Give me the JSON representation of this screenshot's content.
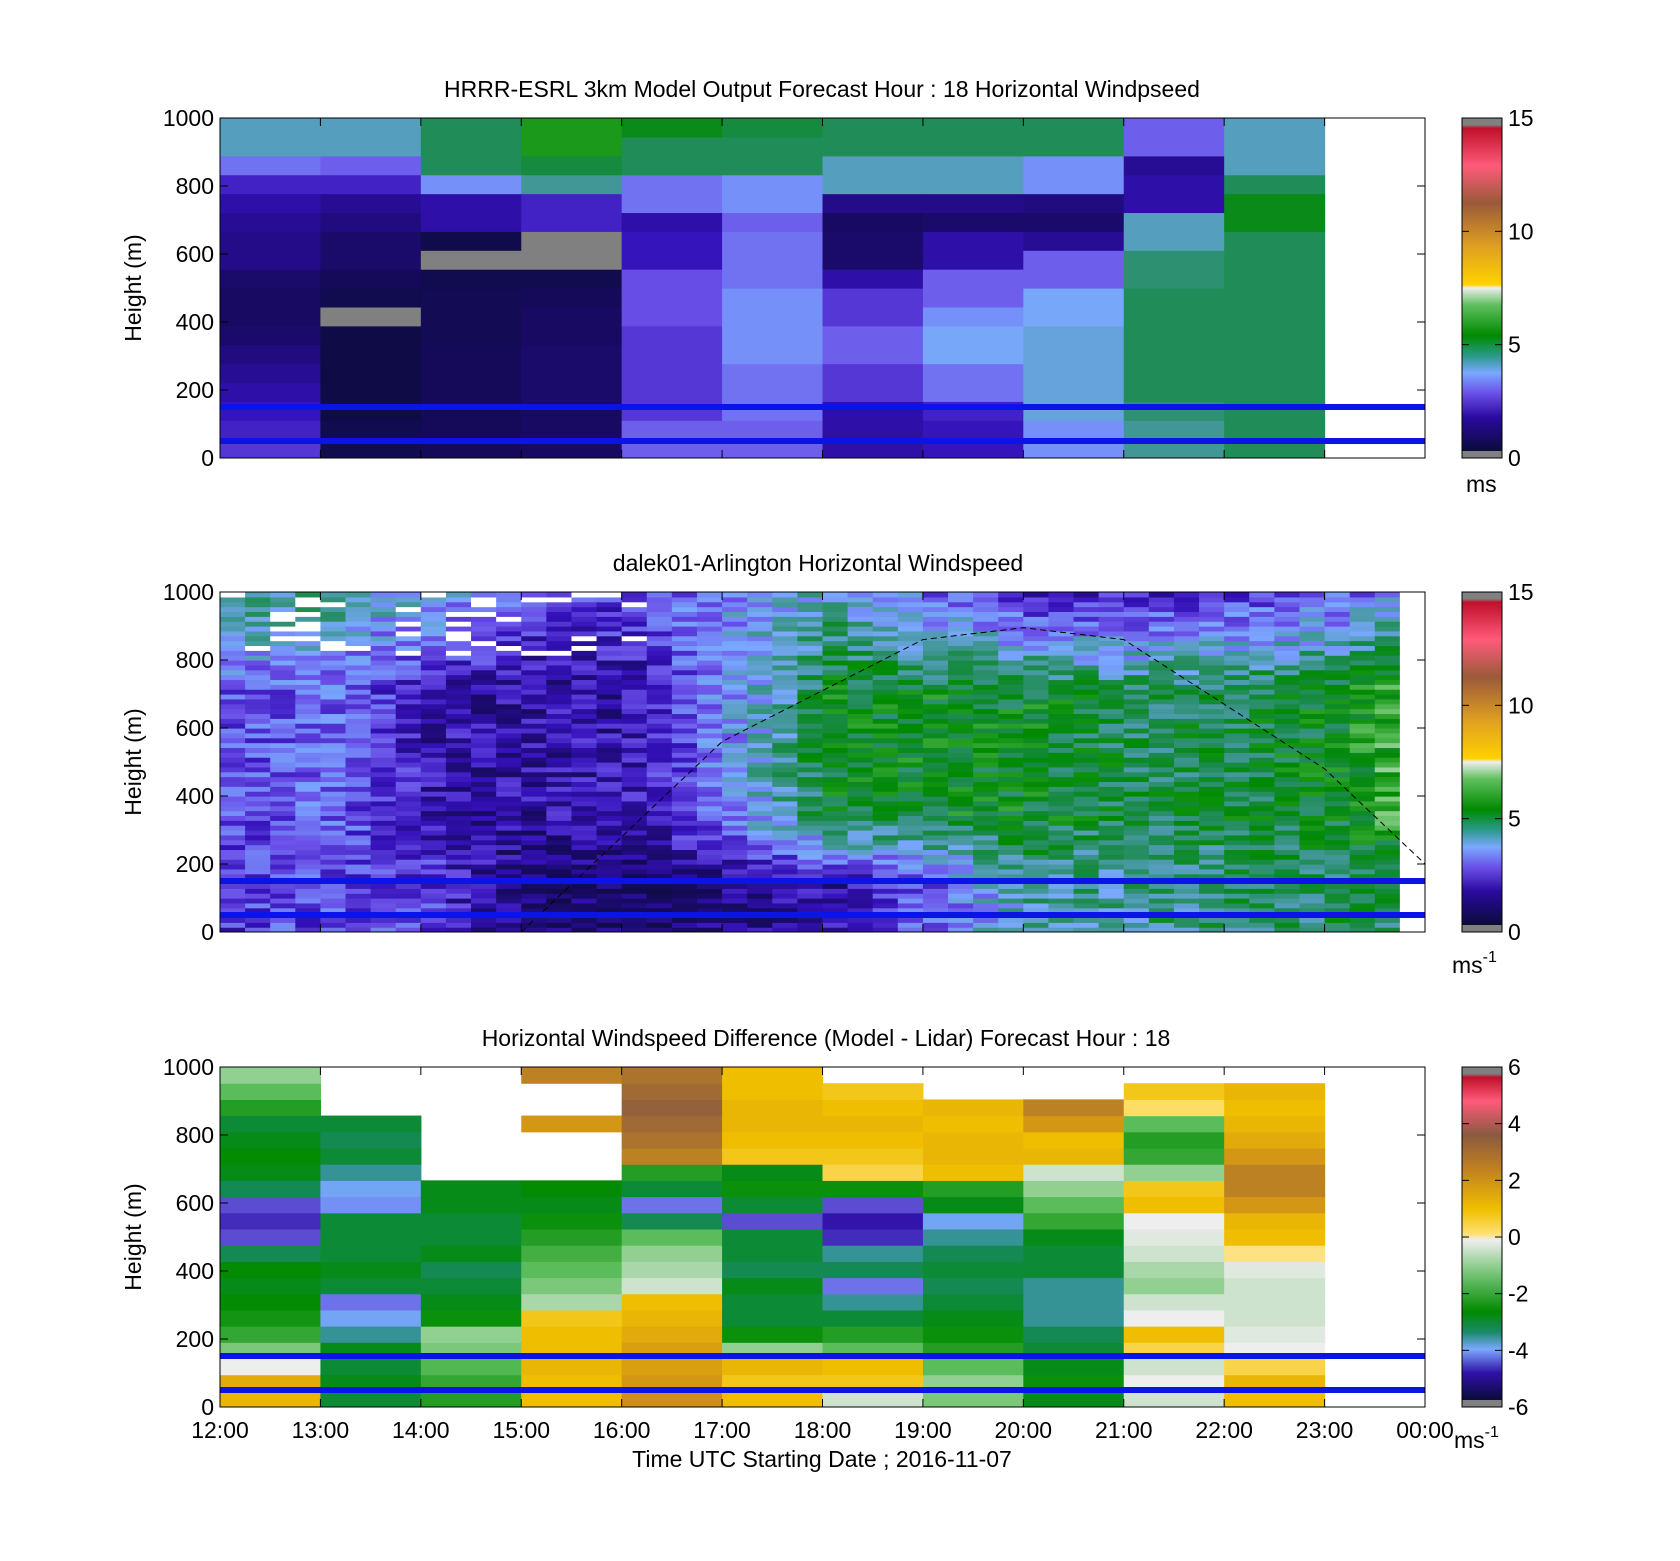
{
  "chart_data": [
    {
      "type": "heatmap",
      "title": "HRRR-ESRL 3km Model Output   Forecast Hour : 18 Horizontal Windpseed",
      "ylabel": "Height (m)",
      "xlabel": "",
      "ylim": [
        0,
        1000
      ],
      "yticks": [
        "0",
        "200",
        "400",
        "600",
        "800",
        "1000"
      ],
      "xlim": [
        12,
        24
      ],
      "colorbar": {
        "min": 0,
        "max": 15,
        "ticks": [
          "0",
          "5",
          "10",
          "15"
        ],
        "unit_label": "ms",
        "unit_sup": ""
      },
      "reference_lines_height_m": [
        50,
        150
      ],
      "columns": [
        {
          "hour": 12,
          "speeds": [
            2.5,
            2.2,
            2.0,
            1.8,
            1.6,
            1.4,
            1.2,
            1.0,
            1.0,
            1.2,
            1.5,
            1.5,
            1.6,
            1.8,
            2.2,
            3.2,
            4.2,
            4.2
          ]
        },
        {
          "hour": 13,
          "speeds": [
            0.5,
            0.5,
            0.3,
            0.3,
            0.3,
            0.3,
            0.3,
            0.0,
            0.5,
            0.8,
            1.2,
            1.2,
            1.4,
            1.6,
            2.2,
            3.0,
            4.2,
            4.2
          ]
        },
        {
          "hour": 14,
          "speeds": [
            0.8,
            0.8,
            0.8,
            0.8,
            0.8,
            0.8,
            0.6,
            0.6,
            0.6,
            0.5,
            0.0,
            0.4,
            1.8,
            1.8,
            3.5,
            5.0,
            5.0,
            5.0
          ]
        },
        {
          "hour": 15,
          "speeds": [
            1.0,
            1.0,
            1.0,
            1.2,
            1.2,
            1.2,
            1.0,
            1.0,
            0.8,
            0.5,
            0.0,
            0.0,
            2.2,
            2.2,
            4.5,
            5.2,
            6.0,
            6.0
          ]
        },
        {
          "hour": 16,
          "speeds": [
            3.0,
            3.0,
            2.5,
            2.5,
            2.5,
            2.5,
            2.5,
            2.8,
            2.8,
            2.8,
            2.0,
            2.0,
            1.8,
            3.2,
            3.2,
            5.0,
            5.0,
            5.5
          ]
        },
        {
          "hour": 17,
          "speeds": [
            3.0,
            3.0,
            3.2,
            3.2,
            3.2,
            3.5,
            3.5,
            3.5,
            3.5,
            3.2,
            3.2,
            3.2,
            3.0,
            3.5,
            3.5,
            5.0,
            5.0,
            5.2
          ]
        },
        {
          "hour": 18,
          "speeds": [
            1.8,
            1.8,
            1.8,
            2.5,
            2.5,
            3.0,
            3.0,
            2.5,
            2.5,
            1.8,
            1.2,
            1.2,
            1.0,
            1.5,
            4.2,
            4.2,
            5.0,
            5.0
          ]
        },
        {
          "hour": 19,
          "speeds": [
            2.0,
            2.0,
            2.2,
            3.2,
            3.2,
            3.8,
            3.8,
            3.5,
            3.0,
            3.0,
            1.8,
            1.8,
            1.2,
            1.5,
            4.2,
            4.2,
            5.0,
            5.0
          ]
        },
        {
          "hour": 20,
          "speeds": [
            3.5,
            3.5,
            4.0,
            4.0,
            4.0,
            4.0,
            4.0,
            3.8,
            3.8,
            3.0,
            3.0,
            1.6,
            1.2,
            1.4,
            3.5,
            3.5,
            5.0,
            5.0
          ]
        },
        {
          "hour": 21,
          "speeds": [
            4.5,
            4.5,
            4.8,
            5.0,
            5.0,
            5.0,
            5.0,
            5.0,
            5.0,
            4.8,
            4.8,
            4.2,
            4.2,
            1.8,
            1.8,
            1.6,
            3.0,
            3.0
          ]
        },
        {
          "hour": 22,
          "speeds": [
            5.0,
            5.0,
            5.0,
            5.0,
            5.0,
            5.0,
            5.0,
            5.0,
            5.0,
            5.0,
            5.0,
            5.0,
            5.5,
            5.5,
            5.0,
            4.2,
            4.2,
            4.2
          ]
        }
      ]
    },
    {
      "type": "heatmap",
      "title": "dalek01-Arlington  Horizontal Windspeed",
      "ylabel": "Height (m)",
      "xlabel": "",
      "ylim": [
        0,
        1000
      ],
      "yticks": [
        "0",
        "200",
        "400",
        "600",
        "800",
        "1000"
      ],
      "xlim": [
        12,
        24
      ],
      "colorbar": {
        "min": 0,
        "max": 15,
        "ticks": [
          "0",
          "5",
          "10",
          "15"
        ],
        "unit_label": "ms",
        "unit_sup": "-1"
      },
      "reference_lines_height_m": [
        50,
        150
      ],
      "sun_elevation_curve": {
        "x": [
          15.0,
          17.0,
          19.0,
          20.0,
          21.0,
          23.0,
          24.0
        ],
        "y": [
          0,
          560,
          860,
          895,
          860,
          480,
          200
        ]
      },
      "profiles": [
        {
          "x": [
            12,
            13,
            14,
            15,
            16,
            17,
            18,
            19,
            20,
            21,
            22,
            23,
            24
          ],
          "low_speed": [
            2.5,
            2.8,
            2.5,
            1.2,
            1.0,
            1.5,
            2.0,
            3.0,
            4.5,
            4.5,
            4.8,
            5.0,
            5.0
          ],
          "mid_speed": [
            2.8,
            3.0,
            2.0,
            1.8,
            2.0,
            3.5,
            5.5,
            5.5,
            5.5,
            5.0,
            5.2,
            5.5,
            7.0
          ],
          "top_speed": [
            4.8,
            4.5,
            3.8,
            2.8,
            2.5,
            3.5,
            4.2,
            3.0,
            2.0,
            2.2,
            2.5,
            2.8,
            4.0
          ]
        }
      ]
    },
    {
      "type": "heatmap",
      "title": "Horizontal Windspeed Difference (Model - Lidar) Forecast Hour : 18",
      "ylabel": "Height (m)",
      "xlabel": "Time UTC  Starting Date ; 2016-11-07",
      "ylim": [
        0,
        1000
      ],
      "yticks": [
        "0",
        "200",
        "400",
        "600",
        "800",
        "1000"
      ],
      "xlim": [
        12,
        24
      ],
      "xticks": [
        "12:00",
        "13:00",
        "14:00",
        "15:00",
        "16:00",
        "17:00",
        "18:00",
        "19:00",
        "20:00",
        "21:00",
        "22:00",
        "23:00",
        "00:00"
      ],
      "colorbar": {
        "min": -6,
        "max": 6,
        "ticks": [
          "-6",
          "-4",
          "-2",
          "0",
          "2",
          "4",
          "6"
        ],
        "unit_label": "ms",
        "unit_sup": "-1"
      },
      "reference_lines_height_m": [
        50,
        150
      ],
      "columns": [
        {
          "hour": 12,
          "diff": [
            1.2,
            1.5,
            0.0,
            -1.2,
            -2.0,
            -2.4,
            -2.6,
            -2.8,
            -2.6,
            -3.2,
            -4.5,
            -4.8,
            -4.5,
            -3.2,
            -2.8,
            -2.6,
            -2.8,
            -3.0,
            -2.2,
            -1.5,
            -1.0
          ]
        },
        {
          "hour": 13,
          "diff": [
            -3.0,
            -2.8,
            -3.0,
            -2.8,
            -3.5,
            -3.8,
            -4.2,
            -3.0,
            -2.8,
            -3.0,
            -3.0,
            -3.0,
            -4.0,
            -3.8,
            -3.5,
            -3.0,
            -3.2,
            -3.0,
            null,
            null,
            null
          ]
        },
        {
          "hour": 14,
          "diff": [
            -2.2,
            -2.0,
            -1.6,
            -1.2,
            -1.0,
            -2.5,
            -2.8,
            -3.0,
            -3.2,
            -2.8,
            -3.0,
            -3.0,
            -2.8,
            -2.8,
            null,
            null,
            null,
            null,
            null,
            null,
            null
          ]
        },
        {
          "hour": 15,
          "diff": [
            1.0,
            1.0,
            1.2,
            1.0,
            1.0,
            0.8,
            -0.8,
            -1.2,
            -1.5,
            -1.8,
            -2.2,
            -2.5,
            -2.8,
            -2.6,
            null,
            null,
            null,
            2.0,
            null,
            null,
            2.5
          ]
        },
        {
          "hour": 16,
          "diff": [
            2.2,
            2.0,
            1.8,
            1.8,
            1.5,
            1.2,
            1.0,
            -0.5,
            -0.8,
            -1.0,
            -1.5,
            -3.2,
            -4.2,
            -3.0,
            -2.2,
            2.5,
            2.8,
            3.0,
            3.2,
            3.0,
            2.8
          ]
        },
        {
          "hour": 17,
          "diff": [
            1.0,
            0.8,
            1.2,
            -1.0,
            -2.5,
            -3.0,
            -3.0,
            -2.8,
            -3.2,
            -3.0,
            -3.0,
            -4.5,
            -3.0,
            -2.5,
            -2.8,
            0.8,
            1.0,
            1.2,
            1.2,
            1.0,
            1.0
          ]
        },
        {
          "hour": 18,
          "diff": [
            -0.5,
            0.8,
            1.0,
            -1.5,
            -2.2,
            -3.0,
            -3.5,
            -4.2,
            -3.2,
            -3.5,
            -4.8,
            -5.0,
            -4.5,
            -2.5,
            0.5,
            0.8,
            1.0,
            1.2,
            1.0,
            0.8,
            null
          ]
        },
        {
          "hour": 19,
          "diff": [
            -1.2,
            -1.0,
            -1.5,
            -2.2,
            -2.5,
            -2.8,
            -3.0,
            -3.2,
            -3.0,
            -3.2,
            -3.5,
            -3.8,
            -2.8,
            -2.2,
            1.0,
            1.2,
            1.2,
            1.0,
            1.2,
            null,
            null
          ]
        },
        {
          "hour": 20,
          "diff": [
            -2.8,
            -2.5,
            -2.8,
            -3.0,
            -3.2,
            -3.5,
            -3.5,
            -3.5,
            -3.0,
            -3.0,
            -2.8,
            -2.0,
            -1.5,
            -1.0,
            -0.5,
            1.2,
            1.0,
            2.0,
            2.5,
            null,
            null
          ]
        },
        {
          "hour": 21,
          "diff": [
            -0.5,
            0.0,
            -0.5,
            0.5,
            1.0,
            0.0,
            -0.5,
            -1.0,
            -0.8,
            -0.5,
            -0.3,
            0.0,
            1.0,
            0.8,
            -1.0,
            -2.0,
            -2.2,
            -1.5,
            0.3,
            0.8,
            null
          ]
        },
        {
          "hour": 22,
          "diff": [
            1.0,
            1.2,
            0.5,
            0.0,
            -0.3,
            -0.5,
            -0.5,
            -0.5,
            -0.3,
            0.2,
            1.0,
            1.2,
            2.0,
            2.5,
            2.5,
            2.0,
            1.5,
            1.2,
            1.0,
            1.2,
            null
          ]
        }
      ]
    }
  ]
}
